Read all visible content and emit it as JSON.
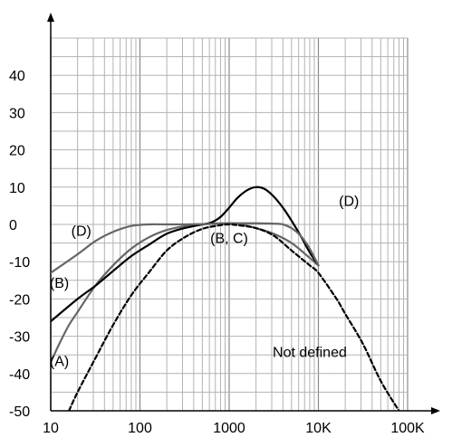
{
  "chart_data": {
    "type": "line",
    "x_scale": "log",
    "xlim": [
      10,
      100000
    ],
    "ylim": [
      -50,
      50
    ],
    "grid": true,
    "x_ticks": [
      10,
      100,
      1000,
      10000,
      100000
    ],
    "x_tick_labels": [
      "10",
      "100",
      "1000",
      "10K",
      "100K"
    ],
    "y_ticks": [
      -50,
      -40,
      -30,
      -20,
      -10,
      0,
      10,
      20,
      30,
      40
    ],
    "y_tick_labels": [
      "-50",
      "-40",
      "-30",
      "-20",
      "-10",
      "0",
      "10",
      "20",
      "30",
      "40"
    ],
    "series": [
      {
        "name": "A",
        "color": "#666666",
        "style": "solid",
        "x": [
          10,
          12.5,
          16,
          20,
          31.5,
          50,
          80,
          125,
          200,
          315,
          500,
          800,
          1000,
          1250,
          2000,
          3150,
          5000,
          8000,
          10000
        ],
        "y": [
          -37,
          -32,
          -27,
          -23.5,
          -16.5,
          -11,
          -6.5,
          -3.5,
          -1.5,
          -0.5,
          0,
          0.3,
          0.3,
          0.2,
          -1,
          -2.5,
          -5,
          -9,
          -11
        ]
      },
      {
        "name": "B",
        "color": "#000000",
        "style": "solid",
        "x": [
          10,
          20,
          31.5,
          50,
          80,
          125,
          200,
          315,
          500,
          630,
          800,
          1000,
          1250,
          1600,
          2000,
          2500,
          3150,
          4000,
          5000,
          6300,
          8000,
          10000
        ],
        "y": [
          -26,
          -20,
          -16.5,
          -12.5,
          -8.5,
          -5.5,
          -2.5,
          -1,
          0,
          0.5,
          2,
          4.5,
          7.2,
          9.2,
          10,
          9.5,
          7.5,
          4.5,
          1,
          -3,
          -7.5,
          -11
        ]
      },
      {
        "name": "C",
        "color": "#666666",
        "style": "solid",
        "x": [
          10,
          20,
          31.5,
          50,
          80,
          125,
          200,
          315,
          500,
          800,
          1000,
          1250,
          2000,
          3150,
          4000,
          5000,
          6300,
          8000,
          10000
        ],
        "y": [
          -13,
          -8,
          -4.5,
          -2,
          -0.4,
          0,
          0,
          0,
          0.1,
          0.2,
          0.3,
          0.3,
          0.3,
          0.2,
          0,
          -1,
          -3,
          -6.5,
          -11
        ]
      },
      {
        "name": "Not defined",
        "color": "#000000",
        "style": "dashed",
        "x": [
          16,
          20,
          31.5,
          50,
          80,
          125,
          200,
          315,
          500,
          800,
          1000,
          1250,
          2000,
          3150,
          5000,
          8000,
          10000,
          16000,
          20000,
          31500,
          50000,
          80000
        ],
        "y": [
          -50,
          -45,
          -36,
          -27,
          -19,
          -13,
          -7,
          -3.5,
          -1.2,
          -0.2,
          0,
          -0.2,
          -1,
          -3,
          -7,
          -11,
          -13,
          -20,
          -24,
          -32,
          -42,
          -50
        ]
      }
    ],
    "annotations": [
      {
        "text": "(D)",
        "x": 22,
        "y": -3
      },
      {
        "text": "(B)",
        "x": 12.5,
        "y": -17
      },
      {
        "text": "(A)",
        "x": 12.5,
        "y": -38
      },
      {
        "text": "(B, C)",
        "x": 1000,
        "y": -5
      },
      {
        "text": "(D)",
        "x": 22000,
        "y": 5
      },
      {
        "text": "Not defined",
        "x": 8000,
        "y": -35.5
      }
    ]
  }
}
